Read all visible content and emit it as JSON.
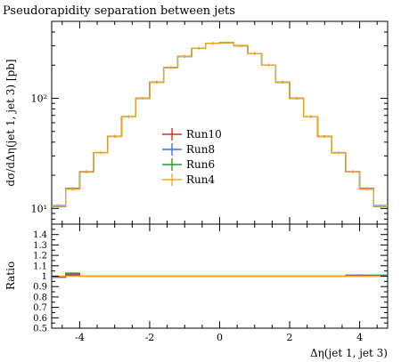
{
  "chart_data": {
    "type": "line",
    "title": "Pseudorapidity separation between jets",
    "xlabel": "Δη(jet 1, jet 3)",
    "ylabel": "dσ/dΔη(jet 1, jet 3) [pb]",
    "ratio_ylabel": "Ratio",
    "xlim": [
      -4.8,
      4.8
    ],
    "ylim_log": [
      7.2,
      500
    ],
    "ratio_ylim": [
      0.5,
      1.5
    ],
    "bin_edges": [
      -4.8,
      -4.4,
      -4.0,
      -3.6,
      -3.2,
      -2.8,
      -2.4,
      -2.0,
      -1.6,
      -1.2,
      -0.8,
      -0.4,
      0.0,
      0.4,
      0.8,
      1.2,
      1.6,
      2.0,
      2.4,
      2.8,
      3.2,
      3.6,
      4.0,
      4.4,
      4.8
    ],
    "x_ticks": [
      {
        "value": -4,
        "label": "-4"
      },
      {
        "value": -2,
        "label": "-2"
      },
      {
        "value": 0,
        "label": "0"
      },
      {
        "value": 2,
        "label": "2"
      },
      {
        "value": 4,
        "label": "4"
      }
    ],
    "y_ticks": [
      {
        "value": 10,
        "label": "10¹"
      },
      {
        "value": 100,
        "label": "10²"
      }
    ],
    "ratio_ticks": [
      {
        "value": 0.5,
        "label": "0.5"
      },
      {
        "value": 0.6,
        "label": "0.6"
      },
      {
        "value": 0.7,
        "label": "0.7"
      },
      {
        "value": 0.8,
        "label": "0.8"
      },
      {
        "value": 0.9,
        "label": "0.9"
      },
      {
        "value": 1.0,
        "label": "1"
      },
      {
        "value": 1.1,
        "label": "1.1"
      },
      {
        "value": 1.2,
        "label": "1.2"
      },
      {
        "value": 1.3,
        "label": "1.3"
      },
      {
        "value": 1.4,
        "label": "1.4"
      }
    ],
    "series": [
      {
        "name": "Run10",
        "color": "#e8292a",
        "values": [
          10.5,
          15.0,
          21.5,
          32.0,
          45.0,
          68.0,
          100.0,
          140.0,
          190.0,
          240.0,
          285.0,
          315.0,
          320.0,
          300.0,
          255.0,
          200.0,
          140.0,
          100.0,
          68.0,
          45.0,
          32.0,
          21.5,
          15.0,
          10.5
        ],
        "ratio": [
          0.99,
          1.02,
          1.0,
          1.0,
          1.0,
          1.0,
          1.0,
          1.0,
          1.0,
          1.0,
          1.0,
          1.0,
          1.0,
          1.0,
          1.0,
          1.0,
          1.0,
          1.0,
          1.0,
          1.0,
          1.0,
          1.0,
          1.0,
          1.0
        ]
      },
      {
        "name": "Run8",
        "color": "#3b6ff2",
        "values": [
          10.6,
          15.1,
          21.6,
          32.0,
          45.1,
          68.2,
          100.2,
          140.3,
          190.2,
          240.1,
          285.2,
          315.1,
          320.1,
          300.2,
          255.1,
          200.2,
          140.1,
          100.1,
          68.1,
          45.1,
          32.1,
          21.6,
          15.1,
          10.6
        ],
        "ratio": [
          0.99,
          1.01,
          1.0,
          1.0,
          1.0,
          1.0,
          1.0,
          1.0,
          1.0,
          1.0,
          1.0,
          1.0,
          1.0,
          1.0,
          1.0,
          1.0,
          1.0,
          1.0,
          1.0,
          1.0,
          1.0,
          1.01,
          1.0,
          1.0
        ]
      },
      {
        "name": "Run6",
        "color": "#2c9a2c",
        "values": [
          10.4,
          15.2,
          21.4,
          32.1,
          45.2,
          67.9,
          99.8,
          140.1,
          189.9,
          240.2,
          284.9,
          315.2,
          319.8,
          300.1,
          255.2,
          199.9,
          140.2,
          99.9,
          68.0,
          45.0,
          31.9,
          21.5,
          15.2,
          10.4
        ],
        "ratio": [
          1.0,
          1.03,
          1.0,
          1.0,
          1.0,
          1.0,
          1.0,
          1.0,
          1.0,
          1.0,
          1.0,
          1.0,
          1.0,
          1.0,
          1.0,
          1.0,
          1.0,
          1.0,
          1.0,
          1.0,
          1.0,
          1.0,
          1.01,
          1.01
        ]
      },
      {
        "name": "Run4",
        "color": "#f5a623",
        "values": [
          10.5,
          15.0,
          21.5,
          32.0,
          45.0,
          68.0,
          100.0,
          140.0,
          190.0,
          240.0,
          285.0,
          315.0,
          320.0,
          300.0,
          255.0,
          200.0,
          140.0,
          100.0,
          68.0,
          45.0,
          32.0,
          21.5,
          15.0,
          10.5
        ],
        "ratio": [
          1.0,
          1.0,
          1.0,
          1.0,
          1.0,
          1.0,
          1.0,
          1.0,
          1.0,
          1.0,
          1.0,
          1.0,
          1.0,
          1.0,
          1.0,
          1.0,
          1.0,
          1.0,
          1.0,
          1.0,
          1.0,
          1.0,
          1.0,
          1.0
        ]
      }
    ]
  }
}
